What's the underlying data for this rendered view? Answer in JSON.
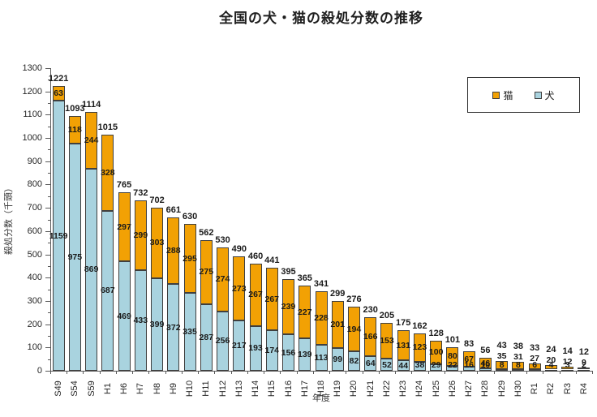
{
  "title": "全国の犬・猫の殺処分数の推移",
  "legend": {
    "cat_label": "猫",
    "dog_label": "犬"
  },
  "colors": {
    "cat_fill": "#F2A104",
    "dog_fill": "#A9D3DF",
    "bar_border": "#3F3F3F",
    "axis": "#595959",
    "label_text": "#1A1A1A"
  },
  "chart_data": {
    "type": "bar",
    "stacked": true,
    "title": "全国の犬・猫の殺処分数の推移",
    "xlabel": "年度",
    "ylabel": "殺処分数（千頭）",
    "ylim": [
      0,
      1300
    ],
    "ytick_step": 100,
    "grid": false,
    "legend_position": "top-right",
    "categories": [
      "S49",
      "S54",
      "S59",
      "H1",
      "H6",
      "H7",
      "H8",
      "H9",
      "H10",
      "H11",
      "H12",
      "H13",
      "H14",
      "H15",
      "H16",
      "H17",
      "H18",
      "H19",
      "H20",
      "H21",
      "H22",
      "H23",
      "H24",
      "H25",
      "H26",
      "H27",
      "H28",
      "H29",
      "H30",
      "R1",
      "R2",
      "R3",
      "R4"
    ],
    "series": [
      {
        "name": "犬",
        "color": "#A9D3DF",
        "values": [
          1159,
          975,
          869,
          687,
          469,
          433,
          399,
          372,
          335,
          287,
          256,
          217,
          193,
          174,
          156,
          139,
          113,
          99,
          82,
          64,
          52,
          44,
          38,
          29,
          22,
          16,
          10,
          8,
          8,
          6,
          4,
          3,
          2
        ]
      },
      {
        "name": "猫",
        "color": "#F2A104",
        "values": [
          63,
          118,
          244,
          328,
          297,
          299,
          303,
          288,
          295,
          275,
          274,
          273,
          267,
          267,
          239,
          227,
          228,
          201,
          194,
          166,
          153,
          131,
          123,
          100,
          80,
          67,
          46,
          35,
          31,
          27,
          20,
          12,
          9
        ]
      }
    ],
    "total_labels": [
      1221,
      1093,
      1114,
      1015,
      765,
      732,
      702,
      661,
      630,
      562,
      530,
      490,
      460,
      441,
      395,
      365,
      341,
      299,
      276,
      230,
      205,
      175,
      162,
      128,
      101,
      83,
      56,
      43,
      38,
      33,
      24,
      14,
      12
    ]
  }
}
